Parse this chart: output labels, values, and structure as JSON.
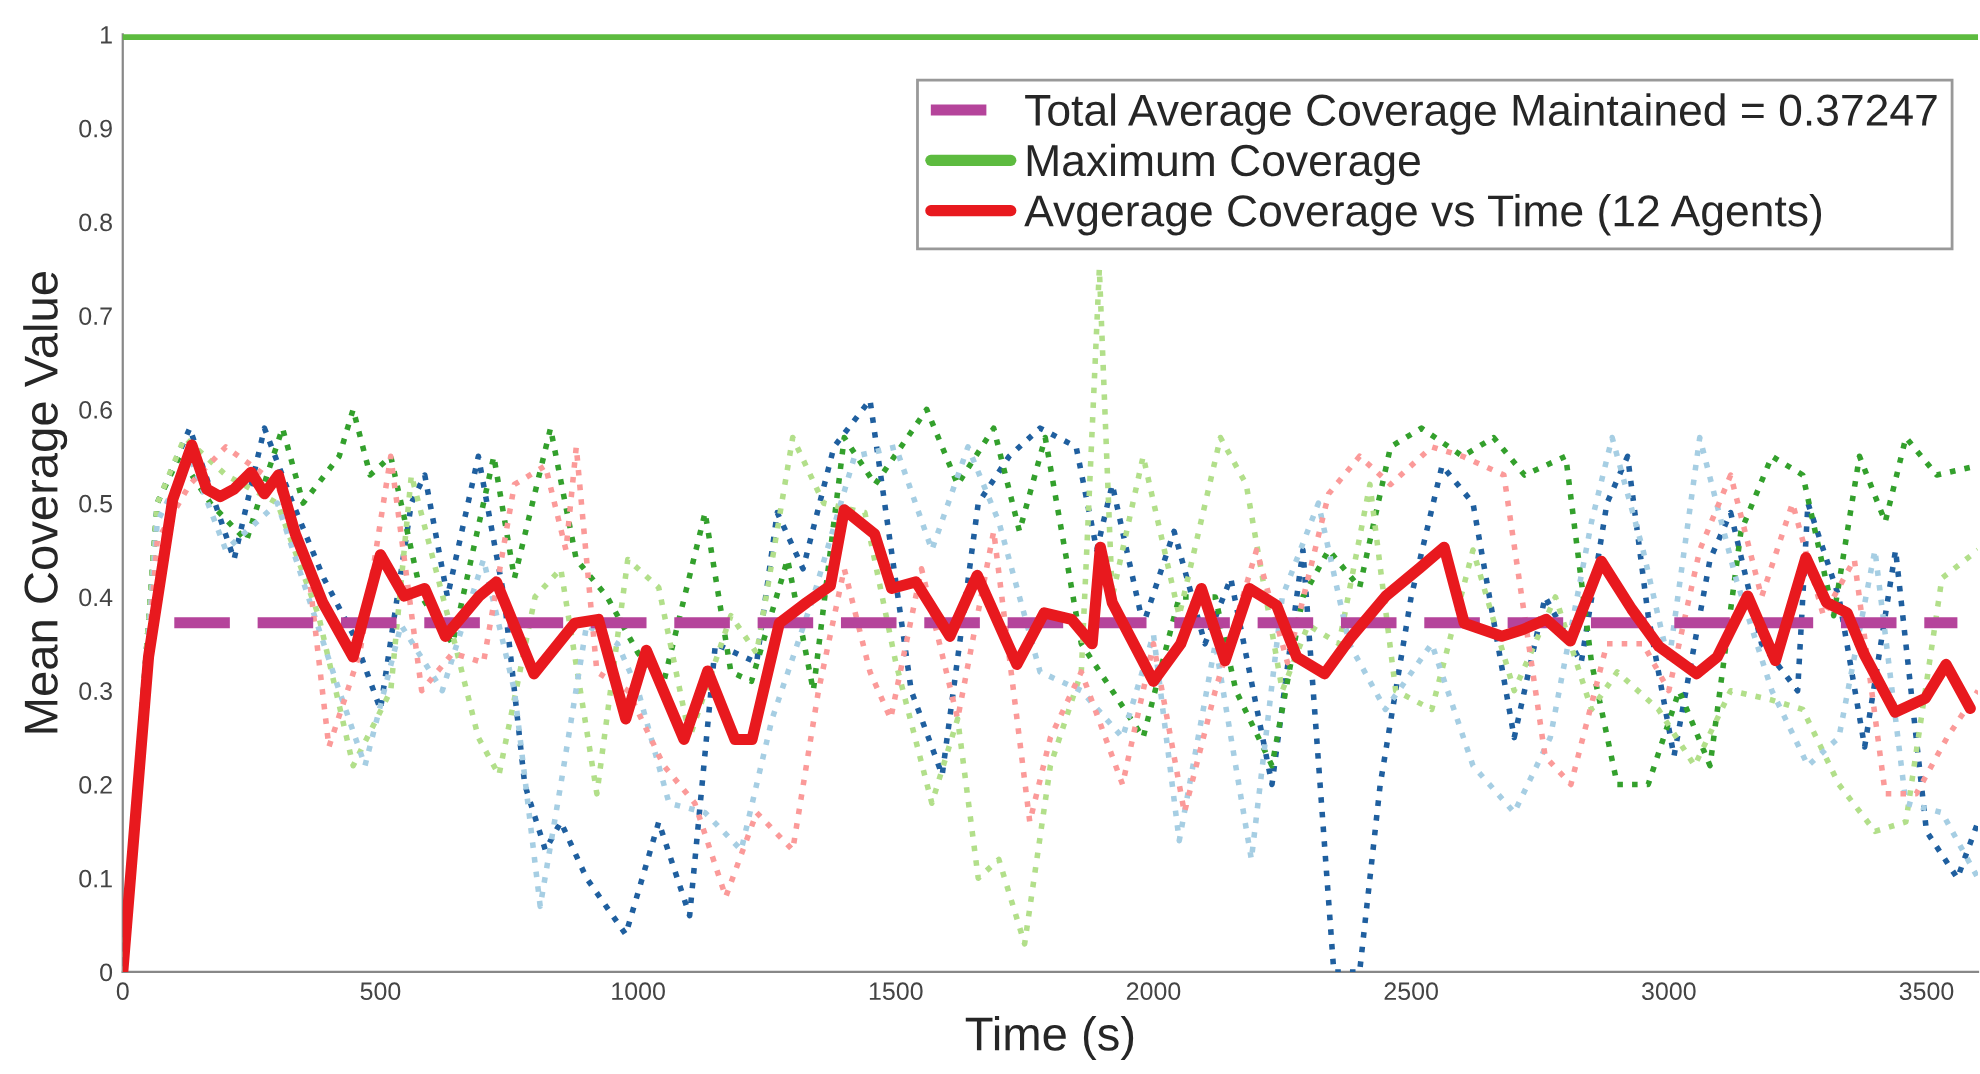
{
  "chart_data": {
    "type": "line",
    "xlabel": "Time (s)",
    "ylabel": "Mean Coverage Value",
    "xlim": [
      0,
      3600
    ],
    "ylim": [
      0,
      1
    ],
    "xticks": [
      0,
      500,
      1000,
      1500,
      2000,
      2500,
      3000,
      3500
    ],
    "yticks": [
      0,
      0.1,
      0.2,
      0.3,
      0.4,
      0.5,
      0.6,
      0.7,
      0.8,
      0.9,
      1
    ],
    "grid": false,
    "legend": "top right",
    "marker": "none",
    "series": [
      {
        "color": "#1f5f9f",
        "line_style": "dotted",
        "x": [
          0,
          67,
          130,
          216,
          275,
          330,
          390,
          447,
          500,
          560,
          586,
          630,
          690,
          740,
          780,
          820,
          850,
          900,
          976,
          1040,
          1100,
          1150,
          1230,
          1270,
          1320,
          1380,
          1450,
          1530,
          1590,
          1660,
          1720,
          1780,
          1850,
          1890,
          1920,
          1980,
          2040,
          2100,
          2150,
          2230,
          2290,
          2350,
          2400,
          2440,
          2500,
          2560,
          2620,
          2700,
          2760,
          2830,
          2880,
          2920,
          2960,
          3010,
          3080,
          3120,
          3180,
          3250,
          3270,
          3330,
          3380,
          3440,
          3500,
          3560,
          3600
        ],
        "values": [
          0,
          0.5,
          0.58,
          0.44,
          0.58,
          0.5,
          0.42,
          0.36,
          0.28,
          0.5,
          0.53,
          0.4,
          0.55,
          0.4,
          0.2,
          0.13,
          0.16,
          0.1,
          0.04,
          0.16,
          0.06,
          0.35,
          0.33,
          0.49,
          0.43,
          0.56,
          0.61,
          0.3,
          0.21,
          0.5,
          0.55,
          0.58,
          0.56,
          0.45,
          0.52,
          0.37,
          0.47,
          0.35,
          0.42,
          0.2,
          0.45,
          0.0,
          0.0,
          0.2,
          0.4,
          0.54,
          0.5,
          0.25,
          0.4,
          0.33,
          0.5,
          0.55,
          0.38,
          0.23,
          0.44,
          0.49,
          0.35,
          0.3,
          0.5,
          0.4,
          0.24,
          0.45,
          0.15,
          0.1,
          0.16
        ]
      },
      {
        "color": "#33a02c",
        "line_style": "dotted",
        "x": [
          0,
          67,
          110,
          170,
          240,
          280,
          310,
          350,
          420,
          447,
          480,
          520,
          580,
          640,
          720,
          760,
          830,
          880,
          940,
          1000,
          1050,
          1130,
          1180,
          1220,
          1290,
          1340,
          1400,
          1460,
          1560,
          1620,
          1690,
          1740,
          1790,
          1860,
          1920,
          1980,
          2050,
          2120,
          2160,
          2230,
          2290,
          2340,
          2400,
          2460,
          2520,
          2600,
          2660,
          2720,
          2800,
          2850,
          2900,
          2960,
          3020,
          3080,
          3140,
          3200,
          3260,
          3320,
          3370,
          3420,
          3460,
          3520,
          3600
        ],
        "values": [
          0,
          0.5,
          0.55,
          0.5,
          0.46,
          0.53,
          0.58,
          0.5,
          0.55,
          0.6,
          0.53,
          0.55,
          0.4,
          0.35,
          0.55,
          0.42,
          0.58,
          0.44,
          0.4,
          0.34,
          0.31,
          0.49,
          0.32,
          0.31,
          0.44,
          0.3,
          0.57,
          0.52,
          0.6,
          0.52,
          0.58,
          0.47,
          0.57,
          0.35,
          0.3,
          0.25,
          0.4,
          0.4,
          0.3,
          0.22,
          0.4,
          0.45,
          0.41,
          0.56,
          0.58,
          0.55,
          0.57,
          0.53,
          0.55,
          0.33,
          0.2,
          0.2,
          0.3,
          0.22,
          0.47,
          0.55,
          0.53,
          0.38,
          0.55,
          0.48,
          0.57,
          0.53,
          0.54
        ]
      },
      {
        "color": "#b2df8a",
        "line_style": "dotted",
        "x": [
          0,
          67,
          120,
          200,
          300,
          380,
          447,
          520,
          560,
          640,
          690,
          730,
          800,
          850,
          920,
          980,
          1040,
          1100,
          1180,
          1230,
          1300,
          1360,
          1440,
          1500,
          1570,
          1620,
          1660,
          1700,
          1750,
          1800,
          1860,
          1895,
          1920,
          1980,
          2050,
          2130,
          2180,
          2250,
          2300,
          2360,
          2420,
          2470,
          2540,
          2620,
          2700,
          2780,
          2850,
          2900,
          2980,
          3050,
          3120,
          3200,
          3260,
          3330,
          3400,
          3460,
          3530,
          3600
        ],
        "values": [
          0,
          0.5,
          0.57,
          0.53,
          0.5,
          0.38,
          0.22,
          0.3,
          0.53,
          0.36,
          0.25,
          0.21,
          0.4,
          0.43,
          0.19,
          0.44,
          0.41,
          0.25,
          0.38,
          0.34,
          0.57,
          0.5,
          0.49,
          0.33,
          0.18,
          0.27,
          0.1,
          0.12,
          0.03,
          0.22,
          0.32,
          0.75,
          0.4,
          0.55,
          0.38,
          0.57,
          0.52,
          0.3,
          0.37,
          0.35,
          0.52,
          0.3,
          0.28,
          0.45,
          0.3,
          0.4,
          0.28,
          0.32,
          0.28,
          0.22,
          0.3,
          0.29,
          0.28,
          0.2,
          0.15,
          0.16,
          0.42,
          0.45
        ]
      },
      {
        "color": "#a6cee3",
        "line_style": "dotted",
        "x": [
          0,
          67,
          130,
          200,
          300,
          420,
          470,
          540,
          620,
          700,
          760,
          810,
          850,
          900,
          960,
          1000,
          1060,
          1130,
          1200,
          1260,
          1340,
          1420,
          1500,
          1570,
          1640,
          1700,
          1780,
          1860,
          1940,
          2000,
          2050,
          2120,
          2190,
          2250,
          2320,
          2380,
          2450,
          2540,
          2620,
          2700,
          2770,
          2850,
          2890,
          2950,
          3000,
          3060,
          3130,
          3200,
          3270,
          3330,
          3400,
          3460,
          3530,
          3600
        ],
        "values": [
          0,
          0.48,
          0.55,
          0.45,
          0.5,
          0.3,
          0.22,
          0.37,
          0.3,
          0.44,
          0.3,
          0.07,
          0.2,
          0.37,
          0.35,
          0.3,
          0.18,
          0.17,
          0.13,
          0.27,
          0.4,
          0.55,
          0.56,
          0.45,
          0.56,
          0.48,
          0.32,
          0.3,
          0.25,
          0.36,
          0.14,
          0.35,
          0.12,
          0.4,
          0.5,
          0.35,
          0.28,
          0.35,
          0.22,
          0.17,
          0.25,
          0.48,
          0.57,
          0.45,
          0.33,
          0.57,
          0.42,
          0.3,
          0.22,
          0.25,
          0.45,
          0.18,
          0.17,
          0.1
        ]
      },
      {
        "color": "#fb9a99",
        "line_style": "dotted",
        "x": [
          0,
          67,
          130,
          200,
          300,
          360,
          400,
          460,
          520,
          580,
          640,
          700,
          760,
          820,
          860,
          880,
          920,
          980,
          1050,
          1110,
          1170,
          1230,
          1300,
          1350,
          1400,
          1450,
          1490,
          1550,
          1620,
          1690,
          1760,
          1800,
          1860,
          1940,
          2000,
          2060,
          2120,
          2200,
          2260,
          2340,
          2400,
          2460,
          2540,
          2600,
          2680,
          2760,
          2810,
          2880,
          2950,
          3000,
          3060,
          3120,
          3180,
          3240,
          3300,
          3360,
          3420,
          3480,
          3540,
          3600
        ],
        "values": [
          0,
          0.46,
          0.52,
          0.56,
          0.52,
          0.43,
          0.24,
          0.34,
          0.55,
          0.3,
          0.34,
          0.33,
          0.52,
          0.54,
          0.45,
          0.56,
          0.32,
          0.3,
          0.22,
          0.18,
          0.08,
          0.17,
          0.13,
          0.3,
          0.43,
          0.32,
          0.27,
          0.43,
          0.27,
          0.47,
          0.16,
          0.25,
          0.32,
          0.2,
          0.35,
          0.17,
          0.3,
          0.45,
          0.33,
          0.51,
          0.55,
          0.52,
          0.56,
          0.55,
          0.53,
          0.23,
          0.2,
          0.35,
          0.35,
          0.3,
          0.45,
          0.53,
          0.4,
          0.5,
          0.38,
          0.44,
          0.19,
          0.19,
          0.25,
          0.3
        ]
      },
      {
        "name": "Total Average Coverage Maintained = 0.37247",
        "color": "#b5449b",
        "line_style": "dashed",
        "x": [
          100,
          3560
        ],
        "values": [
          0.37247,
          0.37247
        ]
      },
      {
        "name": "Maximum Coverage",
        "color": "#5dbb3f",
        "line_style": "solid",
        "x": [
          0,
          3600
        ],
        "values": [
          1,
          1
        ]
      },
      {
        "name": "Avgerage Coverage vs Time (12 Agents)",
        "color": "#e8191e",
        "line_style": "solid",
        "x": [
          0,
          50,
          97,
          134,
          163,
          189,
          216,
          249,
          275,
          302,
          335,
          388,
          447,
          500,
          546,
          586,
          626,
          692,
          725,
          798,
          877,
          923,
          976,
          1016,
          1089,
          1135,
          1188,
          1221,
          1274,
          1327,
          1373,
          1400,
          1459,
          1492,
          1539,
          1605,
          1658,
          1735,
          1788,
          1841,
          1881,
          1897,
          1920,
          2000,
          2053,
          2093,
          2139,
          2186,
          2239,
          2278,
          2332,
          2385,
          2451,
          2517,
          2564,
          2603,
          2676,
          2716,
          2762,
          2809,
          2869,
          2928,
          2981,
          3054,
          3094,
          3153,
          3207,
          3266,
          3306,
          3346,
          3379,
          3439,
          3498,
          3538,
          3585
        ],
        "values": [
          0,
          0.336,
          0.504,
          0.562,
          0.515,
          0.507,
          0.515,
          0.533,
          0.51,
          0.53,
          0.467,
          0.394,
          0.336,
          0.445,
          0.401,
          0.409,
          0.358,
          0.401,
          0.416,
          0.318,
          0.372,
          0.376,
          0.27,
          0.343,
          0.248,
          0.321,
          0.248,
          0.248,
          0.372,
          0.394,
          0.412,
          0.493,
          0.467,
          0.409,
          0.416,
          0.358,
          0.423,
          0.328,
          0.383,
          0.376,
          0.35,
          0.453,
          0.394,
          0.31,
          0.35,
          0.409,
          0.332,
          0.409,
          0.391,
          0.336,
          0.318,
          0.358,
          0.401,
          0.431,
          0.453,
          0.372,
          0.358,
          0.365,
          0.376,
          0.353,
          0.438,
          0.387,
          0.347,
          0.318,
          0.336,
          0.401,
          0.332,
          0.442,
          0.394,
          0.383,
          0.339,
          0.277,
          0.292,
          0.328,
          0.281
        ]
      }
    ]
  }
}
